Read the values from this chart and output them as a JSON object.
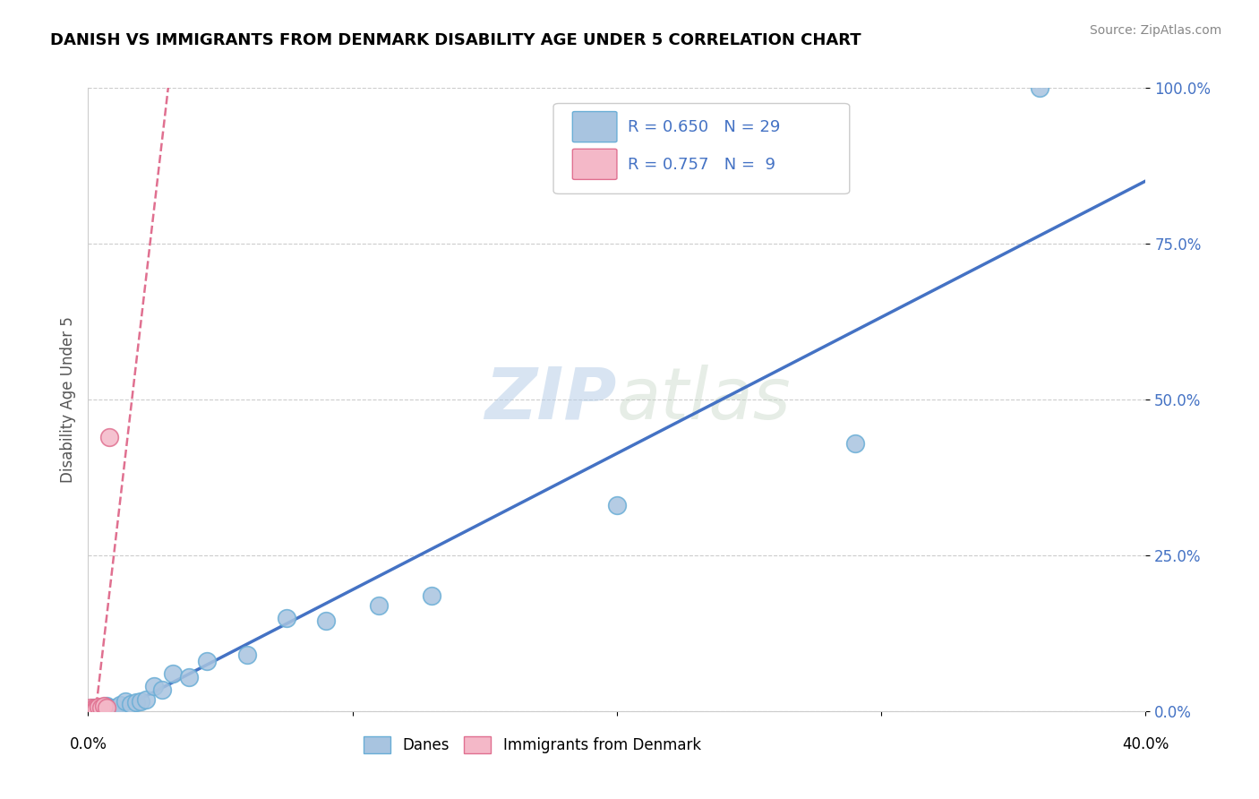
{
  "title": "DANISH VS IMMIGRANTS FROM DENMARK DISABILITY AGE UNDER 5 CORRELATION CHART",
  "source": "Source: ZipAtlas.com",
  "ylabel": "Disability Age Under 5",
  "xlim": [
    0,
    0.4
  ],
  "ylim": [
    0,
    1.0
  ],
  "yticks": [
    0.0,
    0.25,
    0.5,
    0.75,
    1.0
  ],
  "ytick_labels": [
    "0.0%",
    "25.0%",
    "50.0%",
    "75.0%",
    "100.0%"
  ],
  "xticks": [
    0.0,
    0.1,
    0.2,
    0.3,
    0.4
  ],
  "danes_R": 0.65,
  "danes_N": 29,
  "immigrants_R": 0.757,
  "immigrants_N": 9,
  "danes_color": "#a8c4e0",
  "danes_edge_color": "#6aaed6",
  "immigrants_color": "#f4b8c8",
  "immigrants_edge_color": "#e07090",
  "trendline_blue": "#4472c4",
  "trendline_pink": "#e07090",
  "legend_text_color": "#4472c4",
  "watermark_zip": "ZIP",
  "watermark_atlas": "atlas",
  "danes_x": [
    0.002,
    0.003,
    0.004,
    0.004,
    0.005,
    0.006,
    0.007,
    0.008,
    0.009,
    0.01,
    0.012,
    0.014,
    0.016,
    0.018,
    0.02,
    0.022,
    0.025,
    0.028,
    0.032,
    0.038,
    0.045,
    0.06,
    0.075,
    0.09,
    0.11,
    0.13,
    0.2,
    0.29,
    0.36
  ],
  "danes_y": [
    0.005,
    0.003,
    0.004,
    0.002,
    0.006,
    0.004,
    0.008,
    0.006,
    0.003,
    0.005,
    0.01,
    0.015,
    0.012,
    0.014,
    0.016,
    0.018,
    0.04,
    0.035,
    0.06,
    0.055,
    0.08,
    0.09,
    0.15,
    0.145,
    0.17,
    0.185,
    0.33,
    0.43,
    1.0
  ],
  "immigrants_x": [
    0.001,
    0.002,
    0.003,
    0.003,
    0.004,
    0.005,
    0.006,
    0.007,
    0.008
  ],
  "immigrants_y": [
    0.005,
    0.004,
    0.006,
    0.003,
    0.007,
    0.005,
    0.008,
    0.006,
    0.44
  ]
}
